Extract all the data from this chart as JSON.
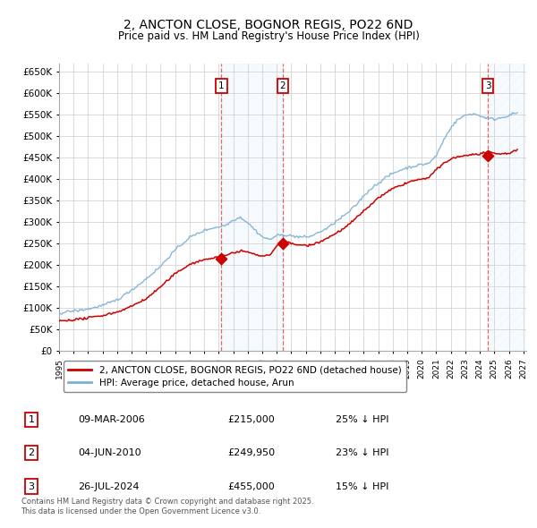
{
  "title": "2, ANCTON CLOSE, BOGNOR REGIS, PO22 6ND",
  "subtitle": "Price paid vs. HM Land Registry's House Price Index (HPI)",
  "ylim": [
    0,
    670000
  ],
  "yticks": [
    0,
    50000,
    100000,
    150000,
    200000,
    250000,
    300000,
    350000,
    400000,
    450000,
    500000,
    550000,
    600000,
    650000
  ],
  "xlim_start": 1995.0,
  "xlim_end": 2027.2,
  "background_color": "#ffffff",
  "grid_color": "#cccccc",
  "sale_color": "#cc0000",
  "hpi_color": "#7ab0d4",
  "transactions": [
    {
      "label": 1,
      "date": 2006.19,
      "price": 215000
    },
    {
      "label": 2,
      "date": 2010.42,
      "price": 249950
    },
    {
      "label": 3,
      "date": 2024.56,
      "price": 455000
    }
  ],
  "legend_sale": "2, ANCTON CLOSE, BOGNOR REGIS, PO22 6ND (detached house)",
  "legend_hpi": "HPI: Average price, detached house, Arun",
  "table_rows": [
    {
      "num": 1,
      "date": "09-MAR-2006",
      "price": "£215,000",
      "pct": "25% ↓ HPI"
    },
    {
      "num": 2,
      "date": "04-JUN-2010",
      "price": "£249,950",
      "pct": "23% ↓ HPI"
    },
    {
      "num": 3,
      "date": "26-JUL-2024",
      "price": "£455,000",
      "pct": "15% ↓ HPI"
    }
  ],
  "footer": "Contains HM Land Registry data © Crown copyright and database right 2025.\nThis data is licensed under the Open Government Licence v3.0."
}
